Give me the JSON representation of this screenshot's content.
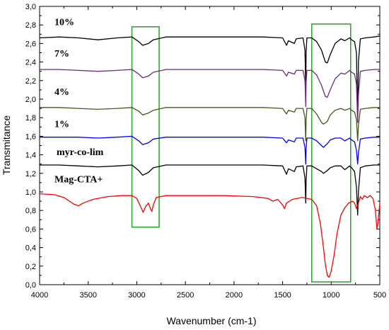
{
  "chart_data": {
    "type": "line",
    "xlabel": "Wavenumber (cm-1)",
    "ylabel": "Transmitance",
    "xlim": [
      4000,
      500
    ],
    "ylim": [
      0,
      3
    ],
    "x_reversed": true,
    "x_ticks": [
      "4000",
      "3500",
      "3000",
      "2500",
      "2000",
      "1500",
      "1000",
      "500"
    ],
    "x_tick_values": [
      4000,
      3500,
      3000,
      2500,
      2000,
      1500,
      1000,
      500
    ],
    "y_ticks": [
      "0,0",
      "0,2",
      "0,4",
      "0,6",
      "0,8",
      "1,0",
      "1,2",
      "1,4",
      "1,6",
      "1,8",
      "2,0",
      "2,2",
      "2,4",
      "2,6",
      "2,8",
      "3,0"
    ],
    "y_tick_values": [
      0,
      0.2,
      0.4,
      0.6,
      0.8,
      1.0,
      1.2,
      1.4,
      1.6,
      1.8,
      2.0,
      2.2,
      2.4,
      2.6,
      2.8,
      3.0
    ],
    "highlight_regions": [
      {
        "x": [
          3050,
          2770
        ],
        "y": [
          0.62,
          2.78
        ]
      },
      {
        "x": [
          1200,
          800
        ],
        "y": [
          0.03,
          2.81
        ]
      }
    ],
    "highlight_color": "#2ca02c",
    "series": [
      {
        "name": "10%",
        "color": "#000000",
        "points": [
          [
            4000,
            2.66
          ],
          [
            3800,
            2.67
          ],
          [
            3600,
            2.66
          ],
          [
            3400,
            2.64
          ],
          [
            3200,
            2.66
          ],
          [
            3050,
            2.67
          ],
          [
            2980,
            2.62
          ],
          [
            2940,
            2.58
          ],
          [
            2880,
            2.6
          ],
          [
            2830,
            2.64
          ],
          [
            2700,
            2.67
          ],
          [
            2400,
            2.67
          ],
          [
            2000,
            2.67
          ],
          [
            1700,
            2.67
          ],
          [
            1500,
            2.66
          ],
          [
            1460,
            2.58
          ],
          [
            1440,
            2.63
          ],
          [
            1380,
            2.6
          ],
          [
            1360,
            2.65
          ],
          [
            1290,
            2.66
          ],
          [
            1270,
            2.53
          ],
          [
            1262,
            2.1
          ],
          [
            1258,
            2.5
          ],
          [
            1250,
            2.66
          ],
          [
            1200,
            2.66
          ],
          [
            1150,
            2.62
          ],
          [
            1100,
            2.53
          ],
          [
            1060,
            2.4
          ],
          [
            1040,
            2.39
          ],
          [
            1010,
            2.48
          ],
          [
            960,
            2.6
          ],
          [
            900,
            2.65
          ],
          [
            860,
            2.63
          ],
          [
            810,
            2.66
          ],
          [
            790,
            2.64
          ],
          [
            760,
            2.62
          ],
          [
            740,
            2.5
          ],
          [
            728,
            1.75
          ],
          [
            720,
            2.4
          ],
          [
            700,
            2.65
          ],
          [
            650,
            2.66
          ],
          [
            560,
            2.67
          ],
          [
            500,
            2.68
          ]
        ]
      },
      {
        "name": "7%",
        "color": "#6a2c7a",
        "points": [
          [
            4000,
            2.32
          ],
          [
            3800,
            2.32
          ],
          [
            3600,
            2.31
          ],
          [
            3400,
            2.3
          ],
          [
            3200,
            2.31
          ],
          [
            3050,
            2.32
          ],
          [
            2980,
            2.27
          ],
          [
            2940,
            2.23
          ],
          [
            2880,
            2.25
          ],
          [
            2830,
            2.29
          ],
          [
            2700,
            2.32
          ],
          [
            2400,
            2.32
          ],
          [
            2000,
            2.32
          ],
          [
            1700,
            2.32
          ],
          [
            1500,
            2.31
          ],
          [
            1460,
            2.25
          ],
          [
            1440,
            2.29
          ],
          [
            1380,
            2.27
          ],
          [
            1360,
            2.31
          ],
          [
            1290,
            2.31
          ],
          [
            1270,
            2.2
          ],
          [
            1262,
            1.92
          ],
          [
            1258,
            2.18
          ],
          [
            1250,
            2.31
          ],
          [
            1200,
            2.31
          ],
          [
            1150,
            2.26
          ],
          [
            1100,
            2.15
          ],
          [
            1060,
            2.03
          ],
          [
            1040,
            2.02
          ],
          [
            1010,
            2.1
          ],
          [
            960,
            2.22
          ],
          [
            900,
            2.28
          ],
          [
            860,
            2.27
          ],
          [
            810,
            2.31
          ],
          [
            790,
            2.29
          ],
          [
            760,
            2.27
          ],
          [
            740,
            2.16
          ],
          [
            728,
            1.75
          ],
          [
            720,
            2.05
          ],
          [
            700,
            2.3
          ],
          [
            650,
            2.31
          ],
          [
            560,
            2.32
          ],
          [
            500,
            2.32
          ]
        ]
      },
      {
        "name": "4%",
        "color": "#4a5420",
        "points": [
          [
            4000,
            1.91
          ],
          [
            3800,
            1.91
          ],
          [
            3600,
            1.9
          ],
          [
            3400,
            1.89
          ],
          [
            3200,
            1.9
          ],
          [
            3050,
            1.91
          ],
          [
            2980,
            1.87
          ],
          [
            2940,
            1.83
          ],
          [
            2880,
            1.85
          ],
          [
            2830,
            1.88
          ],
          [
            2700,
            1.91
          ],
          [
            2400,
            1.91
          ],
          [
            2000,
            1.91
          ],
          [
            1700,
            1.91
          ],
          [
            1500,
            1.9
          ],
          [
            1460,
            1.84
          ],
          [
            1440,
            1.88
          ],
          [
            1380,
            1.86
          ],
          [
            1360,
            1.9
          ],
          [
            1290,
            1.9
          ],
          [
            1270,
            1.8
          ],
          [
            1262,
            1.55
          ],
          [
            1258,
            1.78
          ],
          [
            1250,
            1.9
          ],
          [
            1200,
            1.9
          ],
          [
            1150,
            1.84
          ],
          [
            1100,
            1.75
          ],
          [
            1080,
            1.73
          ],
          [
            1040,
            1.76
          ],
          [
            1010,
            1.83
          ],
          [
            960,
            1.88
          ],
          [
            900,
            1.9
          ],
          [
            860,
            1.88
          ],
          [
            810,
            1.9
          ],
          [
            790,
            1.88
          ],
          [
            760,
            1.86
          ],
          [
            740,
            1.78
          ],
          [
            728,
            1.55
          ],
          [
            720,
            1.72
          ],
          [
            700,
            1.89
          ],
          [
            650,
            1.9
          ],
          [
            560,
            1.91
          ],
          [
            500,
            1.91
          ]
        ]
      },
      {
        "name": "1%",
        "color": "#0000ff",
        "points": [
          [
            4000,
            1.59
          ],
          [
            3800,
            1.59
          ],
          [
            3600,
            1.59
          ],
          [
            3400,
            1.58
          ],
          [
            3200,
            1.59
          ],
          [
            3050,
            1.6
          ],
          [
            2980,
            1.55
          ],
          [
            2940,
            1.51
          ],
          [
            2880,
            1.53
          ],
          [
            2830,
            1.57
          ],
          [
            2700,
            1.59
          ],
          [
            2400,
            1.59
          ],
          [
            2000,
            1.59
          ],
          [
            1700,
            1.59
          ],
          [
            1500,
            1.58
          ],
          [
            1460,
            1.53
          ],
          [
            1440,
            1.56
          ],
          [
            1380,
            1.54
          ],
          [
            1360,
            1.58
          ],
          [
            1290,
            1.58
          ],
          [
            1270,
            1.48
          ],
          [
            1262,
            1.3
          ],
          [
            1258,
            1.46
          ],
          [
            1250,
            1.58
          ],
          [
            1200,
            1.58
          ],
          [
            1150,
            1.55
          ],
          [
            1100,
            1.5
          ],
          [
            1080,
            1.48
          ],
          [
            1040,
            1.52
          ],
          [
            1010,
            1.56
          ],
          [
            960,
            1.58
          ],
          [
            900,
            1.58
          ],
          [
            860,
            1.55
          ],
          [
            810,
            1.58
          ],
          [
            790,
            1.56
          ],
          [
            760,
            1.54
          ],
          [
            740,
            1.45
          ],
          [
            728,
            1.3
          ],
          [
            720,
            1.42
          ],
          [
            700,
            1.57
          ],
          [
            650,
            1.58
          ],
          [
            560,
            1.59
          ],
          [
            500,
            1.59
          ]
        ]
      },
      {
        "name": "myr-co-lim",
        "color": "#000000",
        "points": [
          [
            4000,
            1.29
          ],
          [
            3800,
            1.29
          ],
          [
            3600,
            1.28
          ],
          [
            3400,
            1.27
          ],
          [
            3200,
            1.28
          ],
          [
            3050,
            1.29
          ],
          [
            2980,
            1.23
          ],
          [
            2940,
            1.18
          ],
          [
            2880,
            1.21
          ],
          [
            2830,
            1.26
          ],
          [
            2700,
            1.29
          ],
          [
            2400,
            1.29
          ],
          [
            2000,
            1.29
          ],
          [
            1700,
            1.29
          ],
          [
            1500,
            1.28
          ],
          [
            1460,
            1.19
          ],
          [
            1440,
            1.25
          ],
          [
            1380,
            1.22
          ],
          [
            1360,
            1.27
          ],
          [
            1290,
            1.28
          ],
          [
            1270,
            1.15
          ],
          [
            1262,
            0.88
          ],
          [
            1258,
            1.12
          ],
          [
            1250,
            1.28
          ],
          [
            1200,
            1.28
          ],
          [
            1150,
            1.25
          ],
          [
            1100,
            1.22
          ],
          [
            1080,
            1.2
          ],
          [
            1040,
            1.23
          ],
          [
            1010,
            1.26
          ],
          [
            960,
            1.28
          ],
          [
            900,
            1.28
          ],
          [
            860,
            1.24
          ],
          [
            810,
            1.28
          ],
          [
            790,
            1.26
          ],
          [
            760,
            1.22
          ],
          [
            740,
            1.05
          ],
          [
            728,
            0.75
          ],
          [
            720,
            1.0
          ],
          [
            700,
            1.26
          ],
          [
            650,
            1.28
          ],
          [
            560,
            1.29
          ],
          [
            500,
            1.29
          ]
        ]
      },
      {
        "name": "Mag-CTA+",
        "color": "#ff0000",
        "points": [
          [
            4000,
            0.98
          ],
          [
            3850,
            0.97
          ],
          [
            3750,
            0.94
          ],
          [
            3650,
            0.87
          ],
          [
            3600,
            0.85
          ],
          [
            3550,
            0.88
          ],
          [
            3450,
            0.92
          ],
          [
            3300,
            0.95
          ],
          [
            3150,
            0.96
          ],
          [
            3050,
            0.96
          ],
          [
            3000,
            0.93
          ],
          [
            2960,
            0.84
          ],
          [
            2935,
            0.78
          ],
          [
            2910,
            0.84
          ],
          [
            2880,
            0.88
          ],
          [
            2860,
            0.82
          ],
          [
            2845,
            0.79
          ],
          [
            2830,
            0.86
          ],
          [
            2800,
            0.94
          ],
          [
            2700,
            0.96
          ],
          [
            2400,
            0.96
          ],
          [
            2100,
            0.96
          ],
          [
            1800,
            0.95
          ],
          [
            1650,
            0.93
          ],
          [
            1600,
            0.9
          ],
          [
            1550,
            0.92
          ],
          [
            1500,
            0.86
          ],
          [
            1480,
            0.82
          ],
          [
            1460,
            0.88
          ],
          [
            1400,
            0.92
          ],
          [
            1300,
            0.94
          ],
          [
            1200,
            0.92
          ],
          [
            1150,
            0.85
          ],
          [
            1110,
            0.65
          ],
          [
            1080,
            0.4
          ],
          [
            1060,
            0.22
          ],
          [
            1040,
            0.1
          ],
          [
            1020,
            0.08
          ],
          [
            1000,
            0.15
          ],
          [
            970,
            0.32
          ],
          [
            940,
            0.55
          ],
          [
            900,
            0.75
          ],
          [
            860,
            0.83
          ],
          [
            820,
            0.88
          ],
          [
            780,
            0.9
          ],
          [
            760,
            0.88
          ],
          [
            740,
            0.82
          ],
          [
            720,
            0.88
          ],
          [
            700,
            0.95
          ],
          [
            680,
            0.92
          ],
          [
            660,
            0.96
          ],
          [
            630,
            0.94
          ],
          [
            600,
            0.96
          ],
          [
            570,
            0.93
          ],
          [
            545,
            0.8
          ],
          [
            530,
            0.6
          ],
          [
            520,
            0.66
          ],
          [
            505,
            0.82
          ],
          [
            500,
            0.88
          ]
        ]
      }
    ]
  }
}
